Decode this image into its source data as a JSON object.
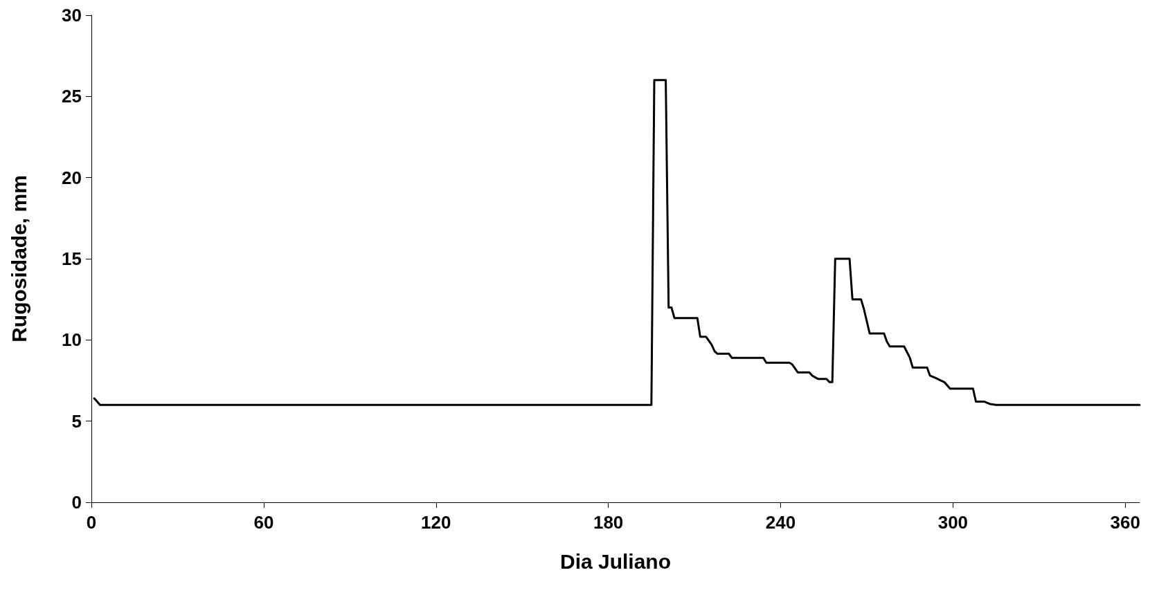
{
  "chart_data": {
    "type": "line",
    "xlabel": "Dia Juliano",
    "ylabel": "Rugosidade, mm",
    "x": [
      1,
      3,
      195,
      196,
      200,
      201,
      202,
      203,
      211,
      212,
      214,
      216,
      217,
      218,
      222,
      223,
      234,
      235,
      243,
      244,
      246,
      250,
      251,
      253,
      256,
      257,
      258,
      259,
      264,
      265,
      268,
      269,
      271,
      276,
      277,
      278,
      283,
      285,
      286,
      291,
      292,
      294,
      297,
      299,
      307,
      308,
      311,
      313,
      315,
      365
    ],
    "series": [
      {
        "color": "#000000",
        "values": [
          6.4,
          6,
          6,
          26,
          26,
          12,
          12,
          11.35,
          11.35,
          10.2,
          10.2,
          9.7,
          9.3,
          9.15,
          9.15,
          8.9,
          8.9,
          8.6,
          8.6,
          8.5,
          8,
          8,
          7.8,
          7.6,
          7.6,
          7.4,
          7.4,
          15,
          15,
          12.5,
          12.5,
          11.9,
          10.4,
          10.4,
          9.9,
          9.6,
          9.6,
          8.9,
          8.3,
          8.3,
          7.8,
          7.65,
          7.4,
          7,
          7,
          6.2,
          6.2,
          6.05,
          6,
          6
        ]
      }
    ],
    "xlim": [
      0,
      365
    ],
    "xticks": [
      0,
      60,
      120,
      180,
      240,
      300,
      360
    ],
    "ylim": [
      0,
      30
    ],
    "yticks": [
      0,
      5,
      10,
      15,
      20,
      25,
      30
    ],
    "grid": false,
    "marker": "none",
    "line_style": "solid"
  }
}
